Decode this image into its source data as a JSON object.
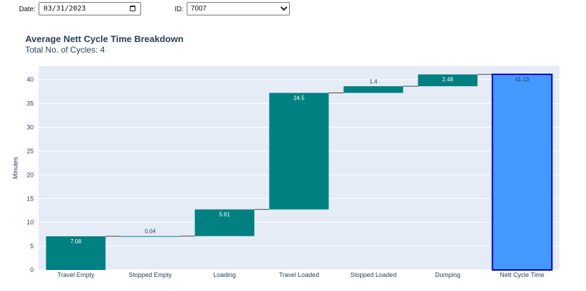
{
  "filters": {
    "date_label": "Date:",
    "date_value": "03/31/2023",
    "id_label": "ID:",
    "id_value": "7007"
  },
  "chart_data": {
    "type": "waterfall",
    "title": "Average Nett Cycle Time Breakdown",
    "subtitle": "Total No. of Cycles: 4",
    "ylabel": "Minutes",
    "xlabel": "",
    "ylim": [
      0,
      42.9
    ],
    "yticks": [
      0,
      5,
      10,
      15,
      20,
      25,
      30,
      35,
      40
    ],
    "categories": [
      "Travel Empty",
      "Stopped Empty",
      "Loading",
      "Travel Loaded",
      "Stopped Loaded",
      "Dumping",
      "Nett Cycle Time"
    ],
    "values": [
      7.08,
      0.04,
      5.61,
      24.5,
      1.4,
      2.48,
      41.13
    ],
    "measure": [
      "relative",
      "relative",
      "relative",
      "relative",
      "relative",
      "relative",
      "total"
    ],
    "labels": [
      "7.08",
      "0.04",
      "5.61",
      "24.5",
      "1.4",
      "2.48",
      "41.13"
    ],
    "colors": {
      "increase": "#008080",
      "total_fill": "#4499ff",
      "total_border": "#0000cc",
      "connector": "#444444",
      "plot_bg": "#e5ecf6",
      "grid": "#ffffff"
    },
    "grid": true
  }
}
